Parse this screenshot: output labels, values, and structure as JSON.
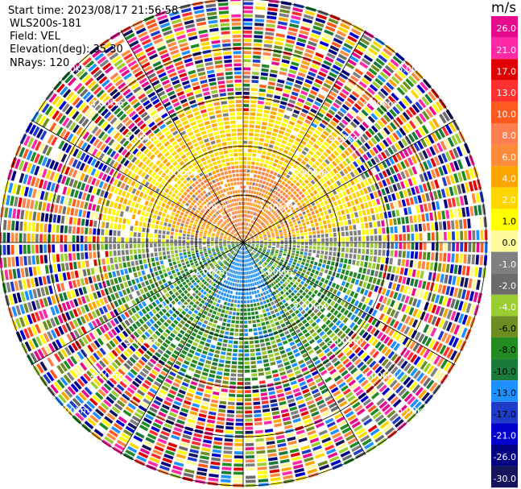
{
  "meta": {
    "start_time": "Start time: 2023/08/17 21:56:58",
    "instrument": "WLS200s-181",
    "field": "Field: VEL",
    "elevation": "Elevation(deg): 35.30",
    "nrays": "NRays: 120"
  },
  "colorbar": {
    "title": "m/s",
    "ticks": [
      "26.0",
      "21.0",
      "17.0",
      "13.0",
      "10.0",
      "8.0",
      "6.0",
      "4.0",
      "2.0",
      "1.0",
      "0.0",
      "-1.0",
      "-2.0",
      "-4.0",
      "-6.0",
      "-8.0",
      "-10.0",
      "-13.0",
      "-17.0",
      "-21.0",
      "-26.0",
      "-30.0"
    ],
    "colors": [
      "#e60a8c",
      "#ff2aa8",
      "#e00000",
      "#ff3030",
      "#ff5a1e",
      "#ff7f50",
      "#ff8c3c",
      "#ffa500",
      "#ffd700",
      "#ffff00",
      "#fffa9a",
      "#808080",
      "#6b6b6b",
      "#9acd32",
      "#6e8e23",
      "#228b22",
      "#1a7a3a",
      "#1e90ff",
      "#1e3cc8",
      "#0000cd",
      "#000080",
      "#14145a"
    ]
  },
  "chart_data": {
    "type": "ppi",
    "field": "VEL",
    "units": "m/s",
    "elevation_deg": 35.3,
    "nrays": 120,
    "range_ring_labels": [
      "1.00km",
      "2.00km",
      "3.00km",
      "4.00km",
      "5.00km"
    ],
    "range_rings_km": [
      1,
      2,
      3,
      4,
      5
    ],
    "max_range_km": 5.0,
    "spoke_azimuths_deg": [
      0,
      30,
      60,
      90,
      120,
      150,
      180,
      210,
      240,
      270,
      300,
      330
    ],
    "value_range": [
      -30,
      26
    ],
    "pattern": "receding (+1 to +10 m/s) north half, approaching (-1 to -8 m/s) south half, near 0 along east-west line, noise beyond ~2.7 km"
  }
}
